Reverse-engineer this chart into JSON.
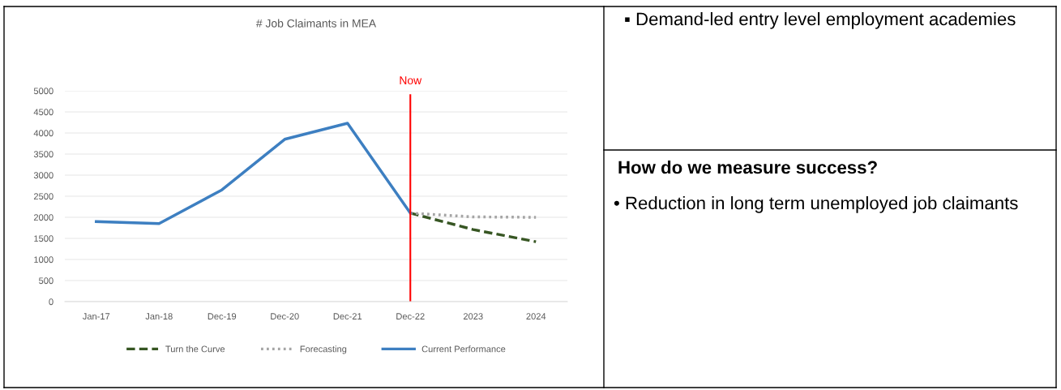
{
  "chart_data": {
    "type": "line",
    "title": "# Job Claimants in MEA",
    "categories": [
      "Jan-17",
      "Jan-18",
      "Dec-19",
      "Dec-20",
      "Dec-21",
      "Dec-22",
      "2023",
      "2024"
    ],
    "series": [
      {
        "name": "Turn the Curve",
        "color": "#375623",
        "line_style": "dashed",
        "values": [
          null,
          null,
          null,
          null,
          null,
          2100,
          1710,
          1420
        ]
      },
      {
        "name": "Forecasting",
        "color": "#a5a5a5",
        "line_style": "dotted",
        "values": [
          null,
          null,
          null,
          null,
          null,
          2100,
          2010,
          2000
        ]
      },
      {
        "name": "Current Performance",
        "color": "#3d7fc1",
        "line_style": "solid",
        "values": [
          1900,
          1850,
          2650,
          3850,
          4230,
          2100,
          null,
          null
        ]
      }
    ],
    "ylim": [
      0,
      5000
    ],
    "yticks": [
      0,
      500,
      1000,
      1500,
      2000,
      2500,
      3000,
      3500,
      4000,
      4500,
      5000
    ],
    "grid": "y",
    "legend": "bottom",
    "marker": "none",
    "ref_lines": [
      {
        "axis": "x",
        "value": "Dec-22",
        "label": "Now",
        "color": "#ff0000",
        "line_style": "solid"
      }
    ],
    "annotations": [
      "▪ Demand-led entry level employment academies",
      "How do we measure success?",
      "• Reduction in long term unemployed job claimants"
    ]
  }
}
